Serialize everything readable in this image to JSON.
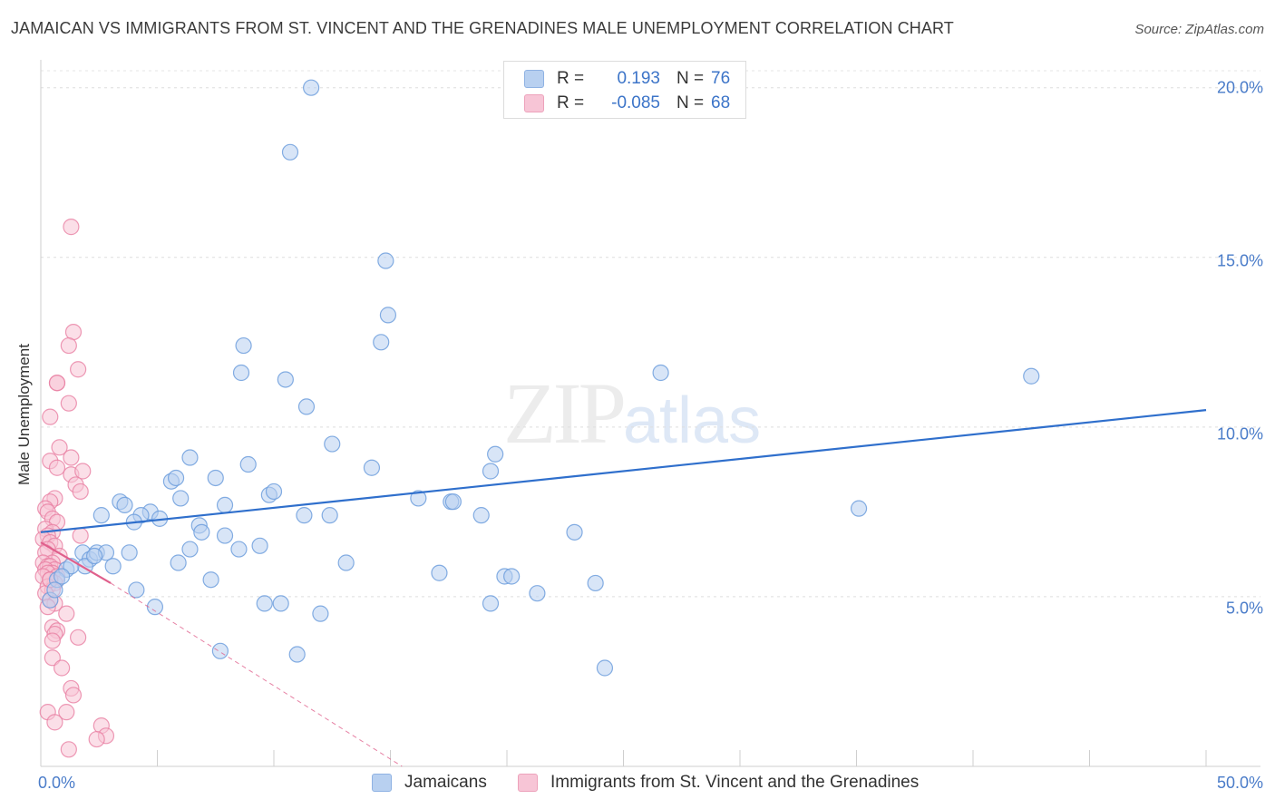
{
  "title": "JAMAICAN VS IMMIGRANTS FROM ST. VINCENT AND THE GRENADINES MALE UNEMPLOYMENT CORRELATION CHART",
  "source": "Source: ZipAtlas.com",
  "watermark": {
    "zip": "ZIP",
    "atlas": "atlas"
  },
  "legend": {
    "series1": {
      "r_label": "R =",
      "r_value": "0.193",
      "n_label": "N =",
      "n_value": "76"
    },
    "series2": {
      "r_label": "R =",
      "r_value": "-0.085",
      "n_label": "N =",
      "n_value": "68"
    }
  },
  "colors": {
    "blue": "#6f9fdd",
    "blue_fill": "#b8d0f0",
    "pink": "#e87fa3",
    "pink_fill": "#f7c5d6",
    "blue_line": "#2f6fcc",
    "pink_line": "#e0608c"
  },
  "chart_data": {
    "type": "scatter",
    "title": "JAMAICAN VS IMMIGRANTS FROM ST. VINCENT AND THE GRENADINES MALE UNEMPLOYMENT CORRELATION CHART",
    "xlabel": "",
    "ylabel": "Male Unemployment",
    "xlim": [
      0,
      50
    ],
    "ylim": [
      0,
      20.5
    ],
    "x_tick_labels": [
      "0.0%",
      "50.0%"
    ],
    "y_ticks": [
      5,
      10,
      15,
      20
    ],
    "y_tick_labels": [
      "5.0%",
      "10.0%",
      "15.0%",
      "20.0%"
    ],
    "series": [
      {
        "name": "Jamaicans",
        "regression": {
          "x0": 0,
          "y0": 6.9,
          "x1": 50,
          "y1": 10.5
        },
        "points": [
          [
            11.6,
            20.0
          ],
          [
            10.7,
            18.1
          ],
          [
            14.8,
            14.9
          ],
          [
            14.9,
            13.3
          ],
          [
            14.6,
            12.5
          ],
          [
            8.7,
            12.4
          ],
          [
            8.6,
            11.6
          ],
          [
            10.5,
            11.4
          ],
          [
            26.6,
            11.6
          ],
          [
            42.5,
            11.5
          ],
          [
            11.4,
            10.6
          ],
          [
            12.5,
            9.5
          ],
          [
            6.4,
            9.1
          ],
          [
            8.9,
            8.9
          ],
          [
            14.2,
            8.8
          ],
          [
            19.5,
            9.2
          ],
          [
            19.3,
            8.7
          ],
          [
            7.5,
            8.5
          ],
          [
            5.6,
            8.4
          ],
          [
            5.8,
            8.5
          ],
          [
            9.8,
            8.0
          ],
          [
            10.0,
            8.1
          ],
          [
            6.0,
            7.9
          ],
          [
            3.4,
            7.8
          ],
          [
            3.6,
            7.7
          ],
          [
            7.9,
            7.7
          ],
          [
            16.2,
            7.9
          ],
          [
            17.6,
            7.8
          ],
          [
            17.7,
            7.8
          ],
          [
            2.6,
            7.4
          ],
          [
            4.7,
            7.5
          ],
          [
            4.3,
            7.4
          ],
          [
            11.3,
            7.4
          ],
          [
            12.4,
            7.4
          ],
          [
            18.9,
            7.4
          ],
          [
            35.1,
            7.6
          ],
          [
            4.0,
            7.2
          ],
          [
            5.1,
            7.3
          ],
          [
            6.8,
            7.1
          ],
          [
            6.9,
            6.9
          ],
          [
            7.9,
            6.8
          ],
          [
            22.9,
            6.9
          ],
          [
            1.8,
            6.3
          ],
          [
            2.1,
            6.1
          ],
          [
            2.4,
            6.3
          ],
          [
            2.8,
            6.3
          ],
          [
            3.8,
            6.3
          ],
          [
            6.4,
            6.4
          ],
          [
            8.5,
            6.4
          ],
          [
            9.4,
            6.5
          ],
          [
            1.9,
            5.9
          ],
          [
            2.3,
            6.2
          ],
          [
            3.1,
            5.9
          ],
          [
            5.9,
            6.0
          ],
          [
            13.1,
            6.0
          ],
          [
            1.1,
            5.8
          ],
          [
            1.3,
            5.9
          ],
          [
            0.7,
            5.5
          ],
          [
            0.9,
            5.6
          ],
          [
            17.1,
            5.7
          ],
          [
            19.9,
            5.6
          ],
          [
            20.2,
            5.6
          ],
          [
            7.3,
            5.5
          ],
          [
            23.8,
            5.4
          ],
          [
            4.1,
            5.2
          ],
          [
            21.3,
            5.1
          ],
          [
            0.4,
            4.9
          ],
          [
            9.6,
            4.8
          ],
          [
            10.3,
            4.8
          ],
          [
            19.3,
            4.8
          ],
          [
            4.9,
            4.7
          ],
          [
            12.0,
            4.5
          ],
          [
            7.7,
            3.4
          ],
          [
            11.0,
            3.3
          ],
          [
            24.2,
            2.9
          ],
          [
            0.6,
            5.2
          ]
        ]
      },
      {
        "name": "Immigrants from St. Vincent and the Grenadines",
        "regression": {
          "x0": 0,
          "y0": 6.6,
          "x1": 3.0,
          "y1": 5.4,
          "dashed_to": {
            "x": 15.5,
            "y": 0.0
          }
        },
        "points": [
          [
            1.3,
            15.9
          ],
          [
            1.4,
            12.8
          ],
          [
            1.2,
            12.4
          ],
          [
            1.6,
            11.7
          ],
          [
            0.7,
            11.3
          ],
          [
            0.7,
            11.3
          ],
          [
            1.2,
            10.7
          ],
          [
            0.4,
            10.3
          ],
          [
            0.8,
            9.4
          ],
          [
            0.4,
            9.0
          ],
          [
            1.3,
            9.1
          ],
          [
            0.7,
            8.8
          ],
          [
            1.3,
            8.6
          ],
          [
            1.8,
            8.7
          ],
          [
            1.5,
            8.3
          ],
          [
            1.7,
            8.1
          ],
          [
            0.6,
            7.9
          ],
          [
            0.4,
            7.8
          ],
          [
            0.2,
            7.6
          ],
          [
            0.3,
            7.5
          ],
          [
            0.5,
            7.3
          ],
          [
            0.7,
            7.2
          ],
          [
            0.2,
            7.0
          ],
          [
            0.5,
            6.9
          ],
          [
            0.3,
            6.8
          ],
          [
            1.7,
            6.8
          ],
          [
            0.1,
            6.7
          ],
          [
            0.4,
            6.6
          ],
          [
            0.6,
            6.5
          ],
          [
            0.3,
            6.4
          ],
          [
            0.2,
            6.3
          ],
          [
            0.8,
            6.2
          ],
          [
            0.5,
            6.0
          ],
          [
            0.1,
            6.0
          ],
          [
            0.3,
            5.9
          ],
          [
            0.4,
            5.9
          ],
          [
            0.6,
            5.8
          ],
          [
            0.2,
            5.8
          ],
          [
            0.5,
            5.7
          ],
          [
            0.3,
            5.7
          ],
          [
            0.7,
            5.6
          ],
          [
            0.1,
            5.6
          ],
          [
            0.4,
            5.5
          ],
          [
            0.6,
            5.4
          ],
          [
            0.3,
            5.3
          ],
          [
            0.5,
            5.2
          ],
          [
            0.2,
            5.1
          ],
          [
            0.4,
            4.9
          ],
          [
            0.6,
            4.8
          ],
          [
            0.3,
            4.7
          ],
          [
            1.1,
            4.5
          ],
          [
            0.5,
            4.1
          ],
          [
            0.7,
            4.0
          ],
          [
            0.6,
            3.9
          ],
          [
            1.6,
            3.8
          ],
          [
            0.5,
            3.7
          ],
          [
            0.5,
            3.2
          ],
          [
            0.9,
            2.9
          ],
          [
            1.3,
            2.3
          ],
          [
            1.4,
            2.1
          ],
          [
            0.3,
            1.6
          ],
          [
            1.1,
            1.6
          ],
          [
            0.6,
            1.3
          ],
          [
            2.6,
            1.2
          ],
          [
            2.8,
            0.9
          ],
          [
            2.4,
            0.8
          ],
          [
            1.2,
            0.5
          ],
          [
            0.4,
            5.5
          ]
        ]
      }
    ]
  },
  "bottom_legend": [
    "Jamaicans",
    "Immigrants from St. Vincent and the Grenadines"
  ]
}
